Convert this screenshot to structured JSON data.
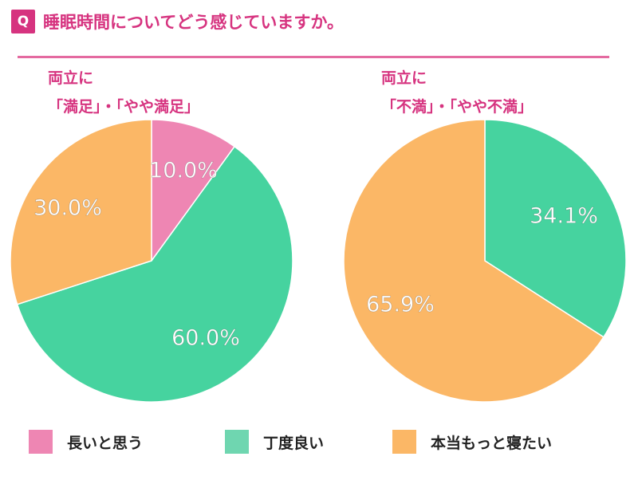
{
  "header": {
    "badge": "Q",
    "question": "睡眠時間についてどう感じていますか。"
  },
  "colors": {
    "accent": "#d6337f",
    "long": "#ee86b3",
    "good": "#46d39f",
    "more": "#fbb766"
  },
  "chart_data": [
    {
      "type": "pie",
      "title": "両立に\n「満足」・「やや満足」",
      "slices": [
        {
          "name": "長いと思う",
          "value": 10.0,
          "label": "10.0%",
          "color": "#ee86b3"
        },
        {
          "name": "丁度良い",
          "value": 60.0,
          "label": "60.0%",
          "color": "#46d39f"
        },
        {
          "name": "本当もっと寝たい",
          "value": 30.0,
          "label": "30.0%",
          "color": "#fbb766"
        }
      ]
    },
    {
      "type": "pie",
      "title": "両立に\n「不満」・「やや不満」",
      "slices": [
        {
          "name": "丁度良い",
          "value": 34.1,
          "label": "34.1%",
          "color": "#46d39f"
        },
        {
          "name": "本当もっと寝たい",
          "value": 65.9,
          "label": "65.9%",
          "color": "#fbb766"
        }
      ]
    }
  ],
  "legend": [
    {
      "label": "長いと思う",
      "color": "#ee86b3"
    },
    {
      "label": "丁度良い",
      "color": "#6fd6b0"
    },
    {
      "label": "本当もっと寝たい",
      "color": "#fbb766"
    }
  ]
}
